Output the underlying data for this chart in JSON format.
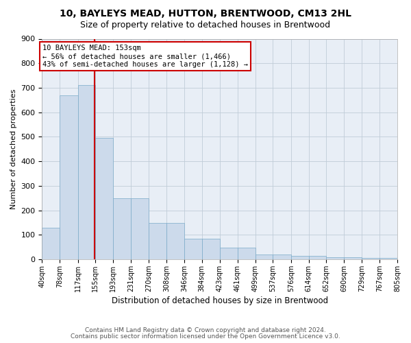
{
  "title1": "10, BAYLEYS MEAD, HUTTON, BRENTWOOD, CM13 2HL",
  "title2": "Size of property relative to detached houses in Brentwood",
  "xlabel": "Distribution of detached houses by size in Brentwood",
  "ylabel": "Number of detached properties",
  "footer1": "Contains HM Land Registry data © Crown copyright and database right 2024.",
  "footer2": "Contains public sector information licensed under the Open Government Licence v3.0.",
  "annotation_line1": "10 BAYLEYS MEAD: 153sqm",
  "annotation_line2": "← 56% of detached houses are smaller (1,466)",
  "annotation_line3": "43% of semi-detached houses are larger (1,128) →",
  "bar_edges": [
    40,
    78,
    117,
    155,
    193,
    231,
    270,
    308,
    346,
    384,
    423,
    461,
    499,
    537,
    576,
    614,
    652,
    690,
    729,
    767,
    805
  ],
  "bar_heights": [
    130,
    670,
    710,
    495,
    250,
    250,
    148,
    148,
    85,
    85,
    47,
    47,
    20,
    20,
    15,
    15,
    9,
    9,
    5,
    5,
    8
  ],
  "bar_color": "#ccdaeb",
  "bar_edge_color": "#7aaac8",
  "vline_color": "#cc0000",
  "vline_x": 153,
  "ylim": [
    0,
    900
  ],
  "yticks": [
    0,
    100,
    200,
    300,
    400,
    500,
    600,
    700,
    800,
    900
  ],
  "annotation_box_edgecolor": "#cc0000",
  "grid_color": "#c0ccd8",
  "background_color": "#e8eef6",
  "title1_fontsize": 10,
  "title2_fontsize": 9,
  "ylabel_fontsize": 8,
  "xlabel_fontsize": 8.5,
  "tick_fontsize": 8,
  "xtick_fontsize": 7,
  "footer_fontsize": 6.5
}
